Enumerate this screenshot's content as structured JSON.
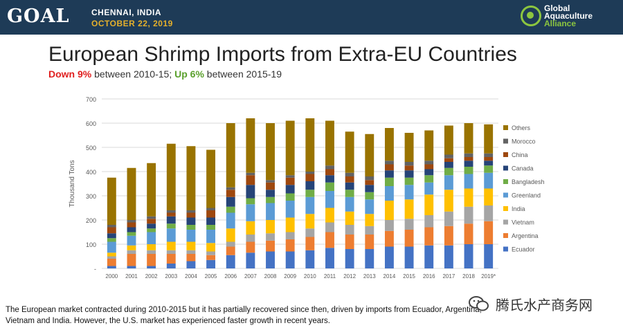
{
  "header": {
    "logo_text": "GOAL",
    "city": "CHENNAI, INDIA",
    "date": "OCTOBER 22, 2019",
    "org_line1": "Global",
    "org_line2": "Aquaculture",
    "org_line3": "Alliance",
    "bg_color": "#1e3b57",
    "accent_color": "#e5b02b"
  },
  "slide": {
    "title": "European Shrimp Imports from Extra-EU Countries",
    "subtitle_down": "Down 9%",
    "subtitle_mid": " between 2010-15; ",
    "subtitle_up": "Up 6%",
    "subtitle_end": " between 2015-19",
    "caption": "The European market contracted during 2010-2015 but it has partially recovered since then, driven by imports from Ecuador, Argentina, Vietnam and India.  However, the U.S. market has experienced faster growth in recent years."
  },
  "watermark": {
    "text": "腾氏水产商务网",
    "icon": "wechat-icon"
  },
  "chart_data": {
    "type": "bar",
    "stacked": true,
    "ylabel": "Thousand Tons",
    "ylim": [
      0,
      700
    ],
    "yticks": [
      0,
      100,
      200,
      300,
      400,
      500,
      600,
      700
    ],
    "ytick_labels": [
      "-",
      "100",
      "200",
      "300",
      "400",
      "500",
      "600",
      "700"
    ],
    "grid": true,
    "legend_position": "right",
    "categories": [
      "2000",
      "2001",
      "2002",
      "2003",
      "2004",
      "2005",
      "2006",
      "2007",
      "2008",
      "2009",
      "2010",
      "2011",
      "2012",
      "2013",
      "2014",
      "2015",
      "2016",
      "2017",
      "2018",
      "2019*"
    ],
    "series": [
      {
        "name": "Ecuador",
        "color": "#4472c4",
        "values": [
          10,
          10,
          10,
          20,
          30,
          35,
          55,
          65,
          70,
          70,
          75,
          85,
          80,
          80,
          90,
          90,
          95,
          95,
          100,
          100
        ]
      },
      {
        "name": "Argentina",
        "color": "#ed7d31",
        "values": [
          30,
          50,
          50,
          40,
          30,
          20,
          35,
          45,
          45,
          50,
          55,
          65,
          60,
          60,
          65,
          70,
          75,
          80,
          85,
          95
        ]
      },
      {
        "name": "Vietnam",
        "color": "#a5a5a5",
        "values": [
          10,
          15,
          15,
          15,
          15,
          15,
          20,
          30,
          30,
          30,
          35,
          40,
          40,
          35,
          45,
          45,
          50,
          60,
          70,
          65
        ]
      },
      {
        "name": "India",
        "color": "#ffc000",
        "values": [
          15,
          20,
          25,
          35,
          35,
          35,
          55,
          55,
          55,
          60,
          60,
          60,
          55,
          50,
          80,
          80,
          85,
          90,
          75,
          70
        ]
      },
      {
        "name": "Greenland",
        "color": "#5b9bd5",
        "values": [
          45,
          40,
          50,
          55,
          50,
          55,
          65,
          70,
          70,
          70,
          70,
          70,
          60,
          60,
          60,
          60,
          50,
          60,
          60,
          65
        ]
      },
      {
        "name": "Bangladesh",
        "color": "#70ad47",
        "values": [
          15,
          15,
          15,
          20,
          20,
          20,
          25,
          25,
          25,
          30,
          30,
          35,
          30,
          30,
          35,
          30,
          30,
          30,
          30,
          30
        ]
      },
      {
        "name": "Canada",
        "color": "#264478",
        "values": [
          20,
          20,
          20,
          30,
          30,
          30,
          40,
          55,
          30,
          35,
          35,
          30,
          30,
          30,
          30,
          30,
          25,
          25,
          25,
          20
        ]
      },
      {
        "name": "China",
        "color": "#9e480e",
        "values": [
          25,
          20,
          20,
          15,
          20,
          30,
          30,
          40,
          30,
          30,
          30,
          25,
          25,
          20,
          25,
          20,
          20,
          15,
          15,
          15
        ]
      },
      {
        "name": "Morocco",
        "color": "#636363",
        "values": [
          10,
          10,
          10,
          10,
          10,
          10,
          10,
          10,
          10,
          10,
          10,
          15,
          15,
          15,
          15,
          15,
          15,
          15,
          15,
          15
        ]
      },
      {
        "name": "Others",
        "color": "#997300",
        "values": [
          195,
          215,
          220,
          275,
          265,
          240,
          265,
          225,
          235,
          225,
          220,
          185,
          170,
          175,
          135,
          120,
          125,
          120,
          125,
          120
        ]
      }
    ]
  }
}
